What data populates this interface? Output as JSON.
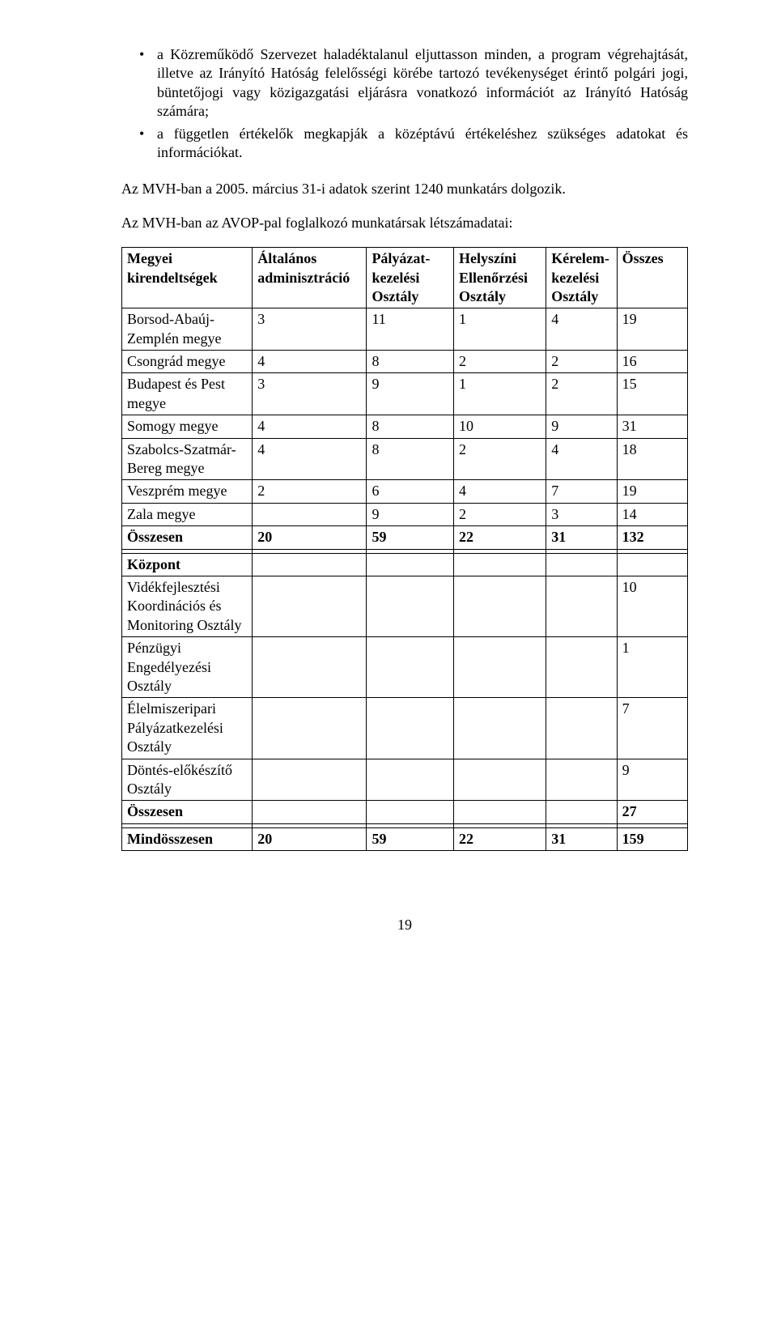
{
  "bullets": [
    "a Közreműködő Szervezet haladéktalanul eljuttasson minden, a program végrehajtását, illetve az Irányító Hatóság felelősségi körébe tartozó tevékenységet érintő polgári jogi, büntetőjogi vagy közigazgatási eljárásra vonatkozó információt az Irányító Hatóság számára;",
    "a független értékelők megkapják a középtávú értékeléshez szükséges adatokat és információkat."
  ],
  "para1": "Az MVH-ban a 2005. március 31-i adatok szerint 1240 munkatárs dolgozik.",
  "para2": "Az MVH-ban az AVOP-pal foglalkozó munkatársak létszámadatai:",
  "headers": {
    "c1": "Megyei kirendeltségek",
    "c2": "Általános adminisztráció",
    "c3": "Pályázat-\nkezelési Osztály",
    "c4": "Helyszíni Ellenőrzési Osztály",
    "c5": "Kérelem-\nkezelési Osztály",
    "c6": "Összes"
  },
  "rows1": [
    {
      "label": "Borsod-Abaúj-Zemplén megye",
      "v": [
        "3",
        "11",
        "1",
        "4",
        "19"
      ]
    },
    {
      "label": "Csongrád megye",
      "v": [
        "4",
        "8",
        "2",
        "2",
        "16"
      ]
    },
    {
      "label": "Budapest és Pest megye",
      "v": [
        "3",
        "9",
        "1",
        "2",
        "15"
      ]
    },
    {
      "label": "Somogy megye",
      "v": [
        "4",
        "8",
        "10",
        "9",
        "31"
      ]
    },
    {
      "label": "Szabolcs-Szatmár-Bereg megye",
      "v": [
        "4",
        "8",
        "2",
        "4",
        "18"
      ]
    },
    {
      "label": "Veszprém megye",
      "v": [
        "2",
        "6",
        "4",
        "7",
        "19"
      ]
    },
    {
      "label": "Zala megye",
      "v": [
        "",
        "9",
        "2",
        "3",
        "14"
      ]
    }
  ],
  "sum1": {
    "label": "Összesen",
    "v": [
      "20",
      "59",
      "22",
      "31",
      "132"
    ]
  },
  "section2_header": "Központ",
  "rows2": [
    {
      "label": "Vidékfejlesztési Koordinációs és Monitoring Osztály",
      "total": "10"
    },
    {
      "label": "Pénzügyi Engedélyezési Osztály",
      "total": "1"
    },
    {
      "label": "Élelmiszeripari Pályázatkezelési Osztály",
      "total": "7"
    },
    {
      "label": "Döntés-előkészítő Osztály",
      "total": "9"
    }
  ],
  "sum2": {
    "label": "Összesen",
    "total": "27"
  },
  "grand": {
    "label": "Mindösszesen",
    "v": [
      "20",
      "59",
      "22",
      "31",
      "159"
    ]
  },
  "pagenum": "19"
}
